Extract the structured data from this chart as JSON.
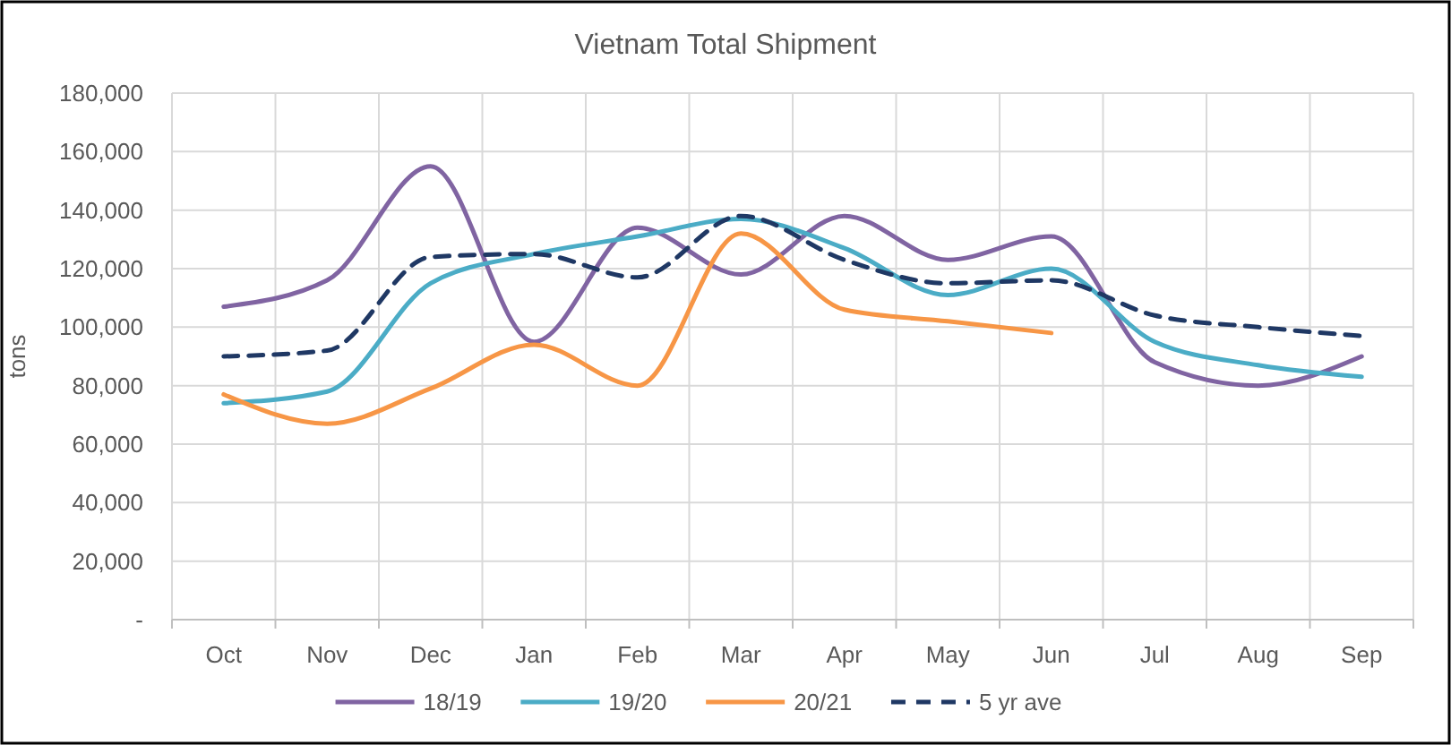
{
  "chart_data": {
    "type": "line",
    "title": "Vietnam Total Shipment",
    "ylabel": "tons",
    "categories": [
      "Oct",
      "Nov",
      "Dec",
      "Jan",
      "Feb",
      "Mar",
      "Apr",
      "May",
      "Jun",
      "Jul",
      "Aug",
      "Sep"
    ],
    "series": [
      {
        "name": "18/19",
        "color": "#8064a2",
        "values": [
          107000,
          116000,
          155000,
          95000,
          134000,
          118000,
          138000,
          123000,
          131000,
          88000,
          80000,
          90000
        ]
      },
      {
        "name": "19/20",
        "color": "#4bacc6",
        "values": [
          74000,
          78000,
          115000,
          125000,
          131000,
          137000,
          127000,
          111000,
          120000,
          95000,
          87000,
          83000
        ]
      },
      {
        "name": "20/21",
        "color": "#f79646",
        "values": [
          77000,
          67000,
          79000,
          94000,
          80000,
          132000,
          106000,
          102000,
          98000,
          null,
          null,
          null
        ]
      },
      {
        "name": "5 yr ave",
        "color": "#1f3864",
        "line_style": "dashed",
        "values": [
          90000,
          92000,
          124000,
          125000,
          117000,
          138000,
          123000,
          115000,
          116000,
          104000,
          100000,
          97000
        ]
      }
    ],
    "ylim": [
      0,
      180000
    ],
    "yticks": [
      {
        "value": 0,
        "label": "-"
      },
      {
        "value": 20000,
        "label": "20,000"
      },
      {
        "value": 40000,
        "label": "40,000"
      },
      {
        "value": 60000,
        "label": "60,000"
      },
      {
        "value": 80000,
        "label": "80,000"
      },
      {
        "value": 100000,
        "label": "100,000"
      },
      {
        "value": 120000,
        "label": "120,000"
      },
      {
        "value": 140000,
        "label": "140,000"
      },
      {
        "value": 160000,
        "label": "160,000"
      },
      {
        "value": 180000,
        "label": "180,000"
      }
    ],
    "grid": true,
    "legend": "bottom"
  }
}
